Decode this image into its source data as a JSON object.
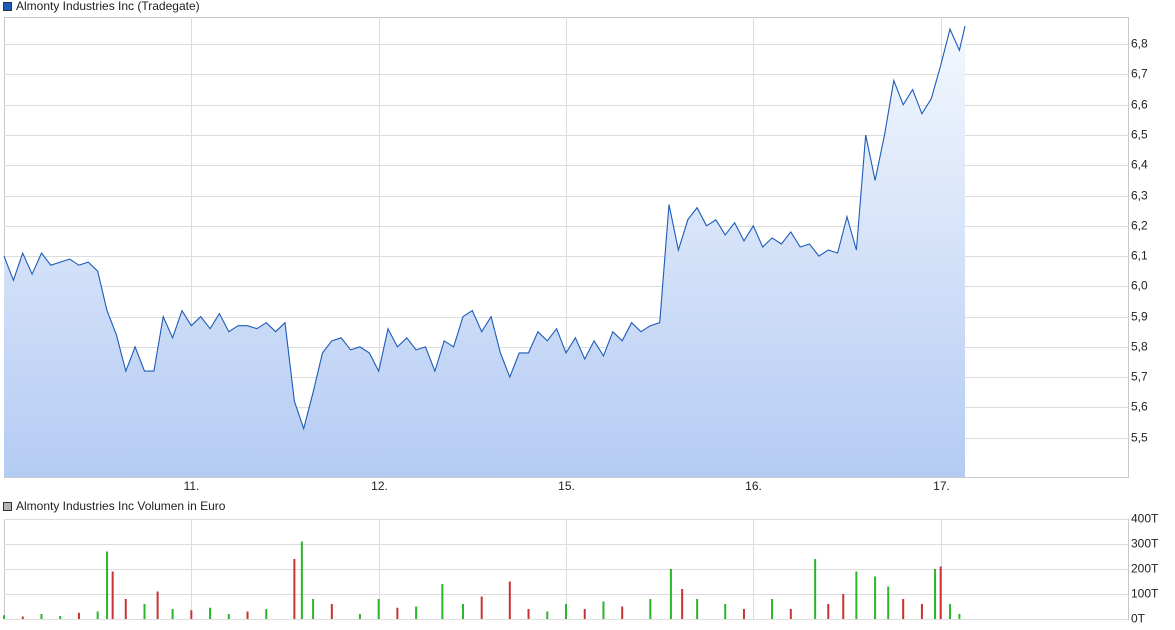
{
  "chart_data": [
    {
      "type": "area-line",
      "title": "Almonty Industries Inc (Tradegate)",
      "color": "#1c5bb8",
      "fill_top": "#f4f8fe",
      "fill_bottom": "#b4cbf3",
      "x": [
        0,
        0.05,
        0.1,
        0.15,
        0.2,
        0.25,
        0.3,
        0.35,
        0.4,
        0.45,
        0.5,
        0.55,
        0.6,
        0.65,
        0.7,
        0.75,
        0.8,
        0.85,
        0.9,
        0.95,
        1,
        1.05,
        1.1,
        1.15,
        1.2,
        1.25,
        1.3,
        1.35,
        1.4,
        1.45,
        1.5,
        1.55,
        1.6,
        1.65,
        1.7,
        1.75,
        1.8,
        1.85,
        1.9,
        1.95,
        2,
        2.05,
        2.1,
        2.15,
        2.2,
        2.25,
        2.3,
        2.35,
        2.4,
        2.45,
        2.5,
        2.55,
        2.6,
        2.65,
        2.7,
        2.75,
        2.8,
        2.85,
        2.9,
        2.95,
        3,
        3.05,
        3.1,
        3.15,
        3.2,
        3.25,
        3.3,
        3.35,
        3.4,
        3.45,
        3.5,
        3.55,
        3.6,
        3.65,
        3.7,
        3.75,
        3.8,
        3.85,
        3.9,
        3.95,
        4,
        4.05,
        4.1,
        4.15,
        4.2,
        4.25,
        4.3,
        4.35,
        4.4,
        4.45,
        4.5,
        4.55,
        4.6,
        4.65,
        4.7,
        4.75,
        4.8,
        4.85,
        4.9,
        4.95,
        5,
        5.05,
        5.1,
        5.13
      ],
      "values": [
        6.1,
        6.02,
        6.11,
        6.04,
        6.11,
        6.07,
        6.08,
        6.09,
        6.07,
        6.08,
        6.05,
        5.92,
        5.84,
        5.72,
        5.8,
        5.72,
        5.72,
        5.9,
        5.83,
        5.92,
        5.87,
        5.9,
        5.86,
        5.91,
        5.85,
        5.87,
        5.87,
        5.86,
        5.88,
        5.85,
        5.88,
        5.62,
        5.53,
        5.65,
        5.78,
        5.82,
        5.83,
        5.79,
        5.8,
        5.78,
        5.72,
        5.86,
        5.8,
        5.83,
        5.79,
        5.8,
        5.72,
        5.82,
        5.8,
        5.9,
        5.92,
        5.85,
        5.9,
        5.78,
        5.7,
        5.78,
        5.78,
        5.85,
        5.82,
        5.86,
        5.78,
        5.83,
        5.76,
        5.82,
        5.77,
        5.85,
        5.82,
        5.88,
        5.85,
        5.87,
        5.88,
        6.27,
        6.12,
        6.22,
        6.26,
        6.2,
        6.22,
        6.17,
        6.21,
        6.15,
        6.2,
        6.13,
        6.16,
        6.14,
        6.18,
        6.13,
        6.14,
        6.1,
        6.12,
        6.11,
        6.23,
        6.12,
        6.5,
        6.35,
        6.5,
        6.68,
        6.6,
        6.65,
        6.57,
        6.62,
        6.73,
        6.85,
        6.78,
        6.86
      ],
      "xlim": [
        0,
        6
      ],
      "xticks": [
        {
          "value": 1,
          "label": "11."
        },
        {
          "value": 2,
          "label": "12."
        },
        {
          "value": 3,
          "label": "15."
        },
        {
          "value": 4,
          "label": "16."
        },
        {
          "value": 5,
          "label": "17."
        }
      ],
      "ylim": [
        5.37,
        6.89
      ],
      "yticks": [
        {
          "value": 5.5,
          "label": "5,5"
        },
        {
          "value": 5.6,
          "label": "5,6"
        },
        {
          "value": 5.7,
          "label": "5,7"
        },
        {
          "value": 5.8,
          "label": "5,8"
        },
        {
          "value": 5.9,
          "label": "5,9"
        },
        {
          "value": 6.0,
          "label": "6,0"
        },
        {
          "value": 6.1,
          "label": "6,1"
        },
        {
          "value": 6.2,
          "label": "6,2"
        },
        {
          "value": 6.3,
          "label": "6,3"
        },
        {
          "value": 6.4,
          "label": "6,4"
        },
        {
          "value": 6.5,
          "label": "6,5"
        },
        {
          "value": 6.6,
          "label": "6,6"
        },
        {
          "value": 6.7,
          "label": "6,7"
        },
        {
          "value": 6.8,
          "label": "6,8"
        }
      ],
      "grid": true
    },
    {
      "type": "bar",
      "title": "Almonty Industries Inc Volumen in Euro",
      "color": "#b4b4b4",
      "x": [
        0,
        0.1,
        0.2,
        0.3,
        0.4,
        0.5,
        0.55,
        0.58,
        0.65,
        0.75,
        0.82,
        0.9,
        1,
        1.1,
        1.2,
        1.3,
        1.4,
        1.55,
        1.59,
        1.65,
        1.75,
        1.9,
        2,
        2.1,
        2.2,
        2.34,
        2.45,
        2.55,
        2.7,
        2.8,
        2.9,
        3,
        3.1,
        3.2,
        3.3,
        3.45,
        3.56,
        3.62,
        3.7,
        3.85,
        3.95,
        4.1,
        4.2,
        4.33,
        4.4,
        4.48,
        4.55,
        4.65,
        4.72,
        4.8,
        4.9,
        4.97,
        5,
        5.05,
        5.1
      ],
      "values": [
        15000,
        10000,
        20000,
        12000,
        25000,
        30000,
        270000,
        190000,
        80000,
        60000,
        110000,
        40000,
        35000,
        45000,
        20000,
        30000,
        40000,
        240000,
        310000,
        80000,
        60000,
        20000,
        80000,
        45000,
        50000,
        140000,
        60000,
        90000,
        150000,
        40000,
        30000,
        60000,
        40000,
        70000,
        50000,
        80000,
        200000,
        120000,
        80000,
        60000,
        40000,
        80000,
        40000,
        240000,
        60000,
        100000,
        190000,
        170000,
        130000,
        80000,
        60000,
        200000,
        210000,
        60000,
        20000
      ],
      "colors": [
        "#2bb52b",
        "#c83232",
        "#2bb52b",
        "#2bb52b",
        "#c83232",
        "#2bb52b",
        "#2bb52b",
        "#c83232",
        "#c83232",
        "#2bb52b",
        "#c83232",
        "#2bb52b",
        "#c83232",
        "#2bb52b",
        "#2bb52b",
        "#c83232",
        "#2bb52b",
        "#c83232",
        "#2bb52b",
        "#2bb52b",
        "#c83232",
        "#2bb52b",
        "#2bb52b",
        "#c83232",
        "#2bb52b",
        "#2bb52b",
        "#2bb52b",
        "#c83232",
        "#c83232",
        "#c83232",
        "#2bb52b",
        "#2bb52b",
        "#c83232",
        "#2bb52b",
        "#c83232",
        "#2bb52b",
        "#2bb52b",
        "#c83232",
        "#2bb52b",
        "#2bb52b",
        "#c83232",
        "#2bb52b",
        "#c83232",
        "#2bb52b",
        "#c83232",
        "#c83232",
        "#2bb52b",
        "#2bb52b",
        "#2bb52b",
        "#c83232",
        "#c83232",
        "#2bb52b",
        "#c83232",
        "#2bb52b",
        "#2bb52b"
      ],
      "xlim": [
        0,
        6
      ],
      "xticks": [
        1,
        2,
        3,
        4,
        5
      ],
      "ylim": [
        0,
        400000
      ],
      "yticks": [
        {
          "value": 0,
          "label": "0T"
        },
        {
          "value": 100000,
          "label": "100T"
        },
        {
          "value": 200000,
          "label": "200T"
        },
        {
          "value": 300000,
          "label": "300T"
        },
        {
          "value": 400000,
          "label": "400T"
        }
      ],
      "grid": true
    }
  ]
}
